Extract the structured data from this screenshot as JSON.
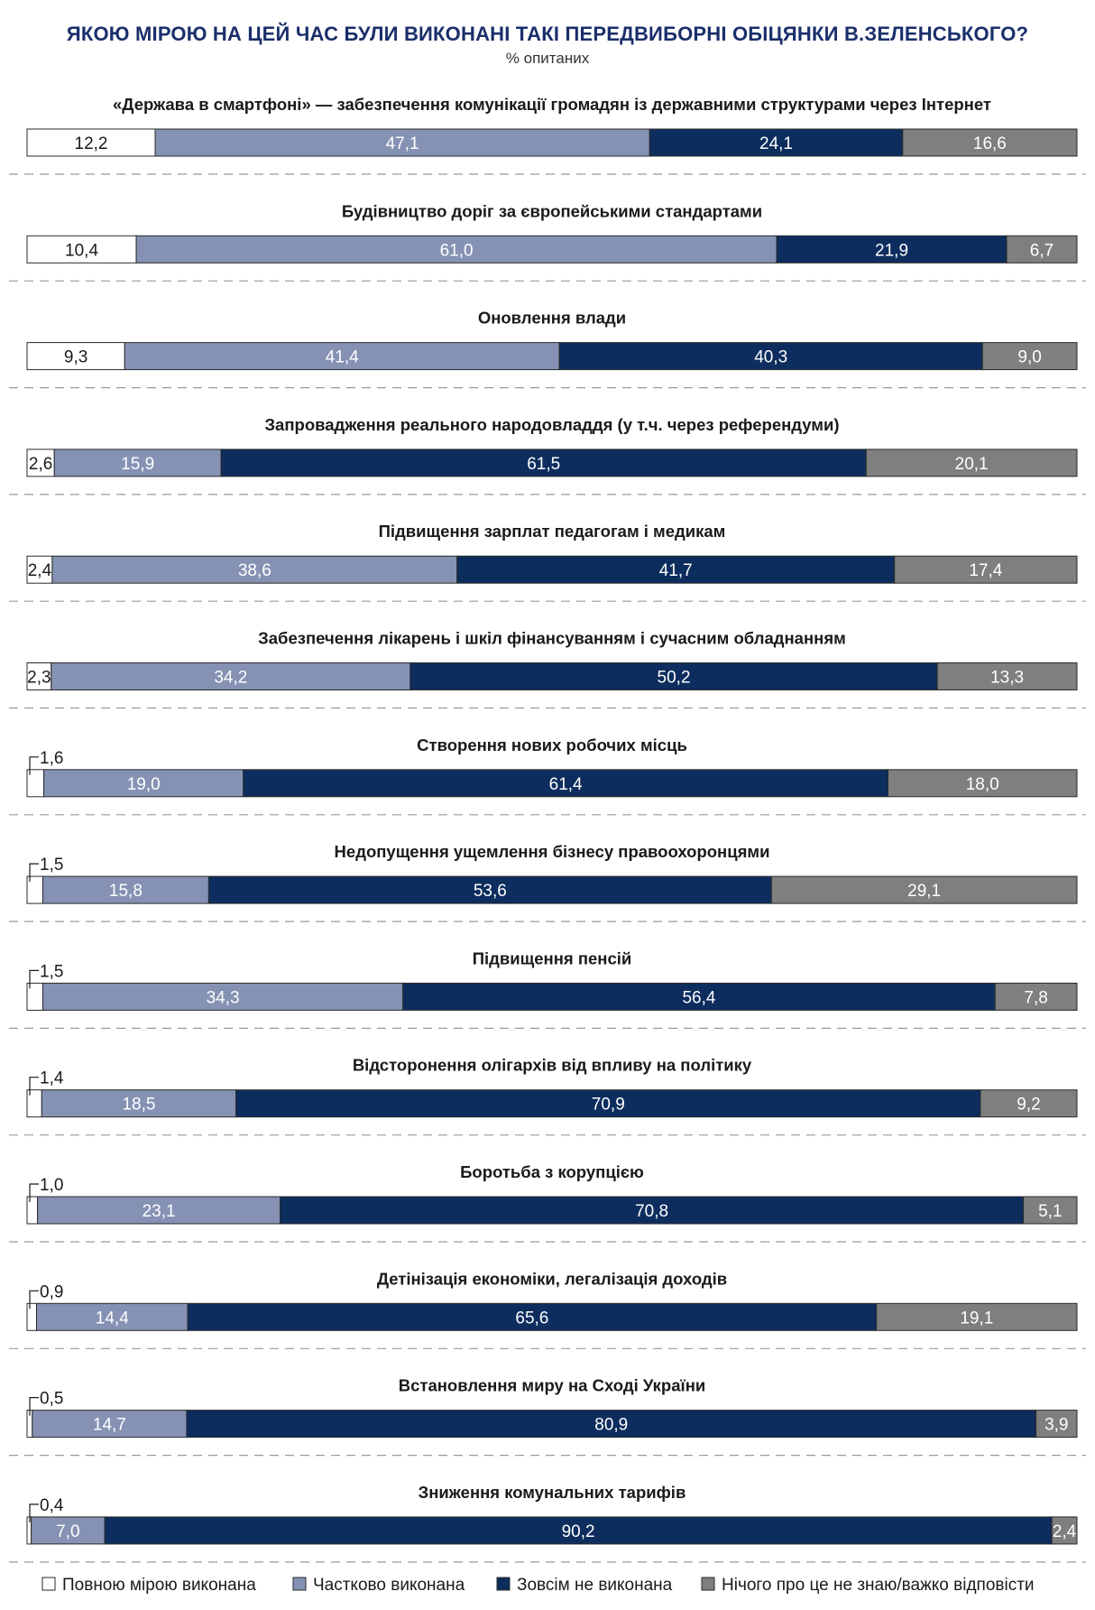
{
  "chart_data": {
    "type": "bar",
    "orientation": "horizontal",
    "stacked": true,
    "title": "ЯКОЮ МІРОЮ НА ЦЕЙ ЧАС БУЛИ ВИКОНАНІ ТАКІ ПЕРЕДВИБОРНІ ОБІЦЯНКИ В.ЗЕЛЕНСЬКОГО?",
    "subtitle": "% опитаних",
    "xlim": [
      0,
      100
    ],
    "legend_position": "bottom",
    "series": [
      {
        "name": "Повною мірою виконана",
        "color": "#ffffff"
      },
      {
        "name": "Частково виконана",
        "color": "#8592b4"
      },
      {
        "name": "Зовсім не виконана",
        "color": "#0d2d5e"
      },
      {
        "name": "Нічого про це не знаю/важко відповісти",
        "color": "#7f7f7f"
      }
    ],
    "categories": [
      {
        "label": "«Держава в смартфоні» — забезпечення комунікації громадян із державними структурами через Інтернет",
        "values": [
          12.2,
          47.1,
          24.1,
          16.6
        ],
        "display": [
          "12,2",
          "47,1",
          "24,1",
          "16,6"
        ]
      },
      {
        "label": "Будівництво доріг за європейськими стандартами",
        "values": [
          10.4,
          61.0,
          21.9,
          6.7
        ],
        "display": [
          "10,4",
          "61,0",
          "21,9",
          "6,7"
        ]
      },
      {
        "label": "Оновлення влади",
        "values": [
          9.3,
          41.4,
          40.3,
          9.0
        ],
        "display": [
          "9,3",
          "41,4",
          "40,3",
          "9,0"
        ]
      },
      {
        "label": "Запровадження реального народовладдя (у т.ч. через референдуми)",
        "values": [
          2.6,
          15.9,
          61.5,
          20.1
        ],
        "display": [
          "2,6",
          "15,9",
          "61,5",
          "20,1"
        ]
      },
      {
        "label": "Підвищення зарплат педагогам і медикам",
        "values": [
          2.4,
          38.6,
          41.7,
          17.4
        ],
        "display": [
          "2,4",
          "38,6",
          "41,7",
          "17,4"
        ]
      },
      {
        "label": "Забезпечення лікарень і шкіл фінансуванням і сучасним обладнанням",
        "values": [
          2.3,
          34.2,
          50.2,
          13.3
        ],
        "display": [
          "2,3",
          "34,2",
          "50,2",
          "13,3"
        ]
      },
      {
        "label": "Створення нових робочих місць",
        "values": [
          1.6,
          19.0,
          61.4,
          18.0
        ],
        "display": [
          "1,6",
          "19,0",
          "61,4",
          "18,0"
        ]
      },
      {
        "label": "Недопущення ущемлення бізнесу правоохоронцями",
        "values": [
          1.5,
          15.8,
          53.6,
          29.1
        ],
        "display": [
          "1,5",
          "15,8",
          "53,6",
          "29,1"
        ]
      },
      {
        "label": "Підвищення пенсій",
        "values": [
          1.5,
          34.3,
          56.4,
          7.8
        ],
        "display": [
          "1,5",
          "34,3",
          "56,4",
          "7,8"
        ]
      },
      {
        "label": "Відсторонення олігархів від впливу на політику",
        "values": [
          1.4,
          18.5,
          70.9,
          9.2
        ],
        "display": [
          "1,4",
          "18,5",
          "70,9",
          "9,2"
        ]
      },
      {
        "label": "Боротьба з корупцією",
        "values": [
          1.0,
          23.1,
          70.8,
          5.1
        ],
        "display": [
          "1,0",
          "23,1",
          "70,8",
          "5,1"
        ]
      },
      {
        "label": "Детінізація економіки, легалізація доходів",
        "values": [
          0.9,
          14.4,
          65.6,
          19.1
        ],
        "display": [
          "0,9",
          "14,4",
          "65,6",
          "19,1"
        ]
      },
      {
        "label": "Встановлення миру на Сході України",
        "values": [
          0.5,
          14.7,
          80.9,
          3.9
        ],
        "display": [
          "0,5",
          "14,7",
          "80,9",
          "3,9"
        ]
      },
      {
        "label": "Зниження комунальних тарифів",
        "values": [
          0.4,
          7.0,
          90.2,
          2.4
        ],
        "display": [
          "0,4",
          "7,0",
          "90,2",
          "2,4"
        ]
      }
    ]
  }
}
